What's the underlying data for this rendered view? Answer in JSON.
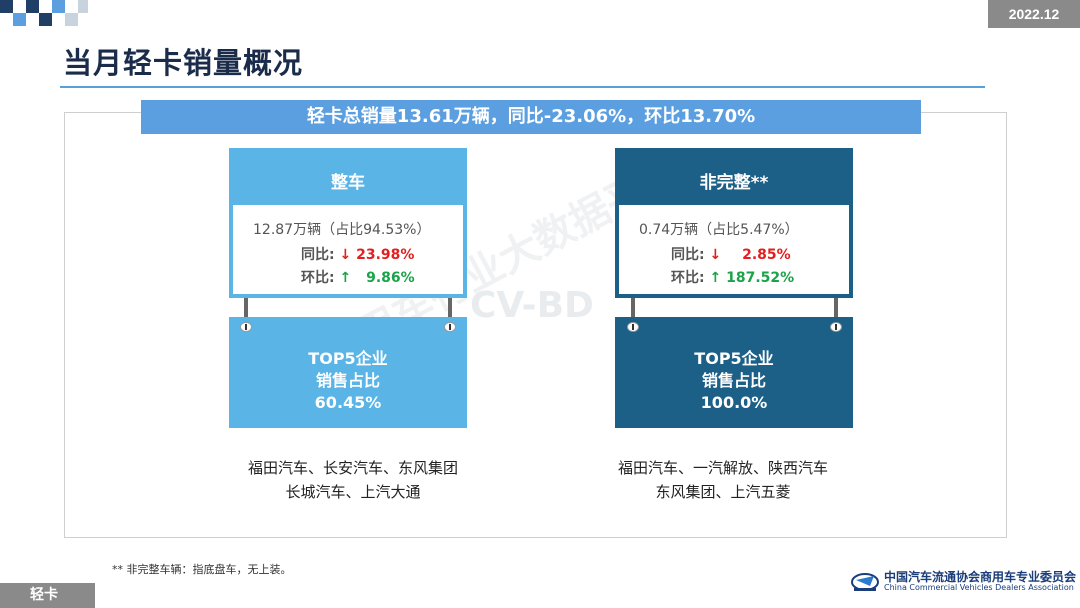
{
  "header": {
    "date": "2022.12",
    "title": "当月轻卡销量概况"
  },
  "summary": "轻卡总销量13.61万辆，同比-23.06%，环比13.70%",
  "cards": [
    {
      "title": "整车",
      "line1": "12.87万辆（占比94.53%）",
      "yoy_label": "同比:",
      "yoy_arrow": "↓",
      "yoy_value": "23.98%",
      "mom_label": "环比:",
      "mom_arrow": "↑",
      "mom_value": "9.86%",
      "top5_l1": "TOP5企业",
      "top5_l2": "销售占比",
      "top5_value": "60.45%",
      "companies_l1": "福田汽车、长安汽车、东风集团",
      "companies_l2": "长城汽车、上汽大通",
      "color": "#5ab4e6"
    },
    {
      "title": "非完整**",
      "line1": "0.74万辆（占比5.47%）",
      "yoy_label": "同比:",
      "yoy_arrow": "↓",
      "yoy_value": "2.85%",
      "mom_label": "环比:",
      "mom_arrow": "↑",
      "mom_value": "187.52%",
      "top5_l1": "TOP5企业",
      "top5_l2": "销售占比",
      "top5_value": "100.0%",
      "companies_l1": "福田汽车、一汽解放、陕西汽车",
      "companies_l2": "东风集团、上汽五菱",
      "color": "#1c6088"
    }
  ],
  "watermark": {
    "text1": "商用车行业大数据平台",
    "text2": "CV-BD"
  },
  "footnote": "** 非完整车辆：指底盘车，无上装。",
  "logo": {
    "cn": "中国汽车流通协会商用车专业委员会",
    "en": "China Commercial Vehicles Dealers Association"
  },
  "footer_tab": "轻卡",
  "colors": {
    "accent": "#5b9fe0",
    "red": "#e02020",
    "green": "#1aa348"
  }
}
